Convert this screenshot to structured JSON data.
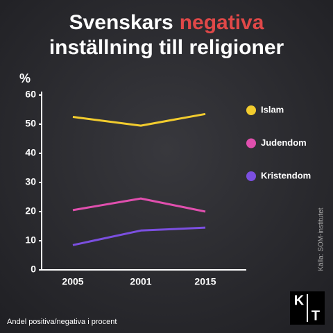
{
  "chart_data": {
    "type": "line",
    "title": [
      "Svenskars",
      "negativa",
      "inställning till religioner"
    ],
    "title_highlight_color": "#e04848",
    "y_unit": "%",
    "categories": [
      "2005",
      "2001",
      "2015"
    ],
    "series": [
      {
        "name": "Islam",
        "color": "#f2cc2e",
        "values": [
          52.5,
          49.5,
          53.5
        ]
      },
      {
        "name": "Judendom",
        "color": "#e04fae",
        "values": [
          20.5,
          24.5,
          20
        ]
      },
      {
        "name": "Kristendom",
        "color": "#7b4fe0",
        "values": [
          8.5,
          13.5,
          14.5
        ]
      }
    ],
    "ylim": [
      0,
      60
    ],
    "yticks": [
      0,
      10,
      20,
      30,
      40,
      50,
      60
    ],
    "grid": false,
    "footnote": "Andel positiva/negativa i procent",
    "source": "Källa: SOM-institutet",
    "logo": [
      "K",
      "T"
    ]
  }
}
